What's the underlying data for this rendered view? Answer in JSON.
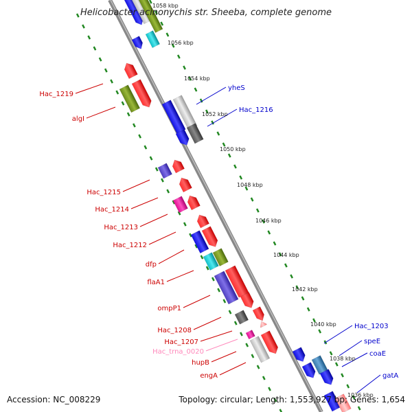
{
  "title": "Helicobacter acinonychis str. Sheeba, complete genome",
  "footer": {
    "accession": "Accession: NC_008229",
    "topology": "Topology: circular; Length: 1,553,927 bp; Genes: 1,654"
  },
  "scale_labels": [
    "1058 kbp",
    "1056 kbp",
    "1054 kbp",
    "1052 kbp",
    "1050 kbp",
    "1048 kbp",
    "1046 kbp",
    "1044 kbp",
    "1042 kbp",
    "1040 kbp",
    "1038 kbp",
    "1036 kbp"
  ],
  "left_labels": [
    "Hac_1219",
    "algI",
    "Hac_1215",
    "Hac_1214",
    "Hac_1213",
    "Hac_1212",
    "dfp",
    "flaA1",
    "ompP1",
    "Hac_1208",
    "Hac_1207",
    "Hac_trna_0020",
    "hupB",
    "engA"
  ],
  "right_labels": [
    "yheS",
    "Hac_1216",
    "Hac_1203",
    "speE",
    "coaE",
    "gatA"
  ],
  "colors": {
    "left_label": "#cc0000",
    "right_label": "#0000cc",
    "trna_label": "#ff88bb",
    "backbone": "#777777",
    "scale_dots": "#228822"
  }
}
